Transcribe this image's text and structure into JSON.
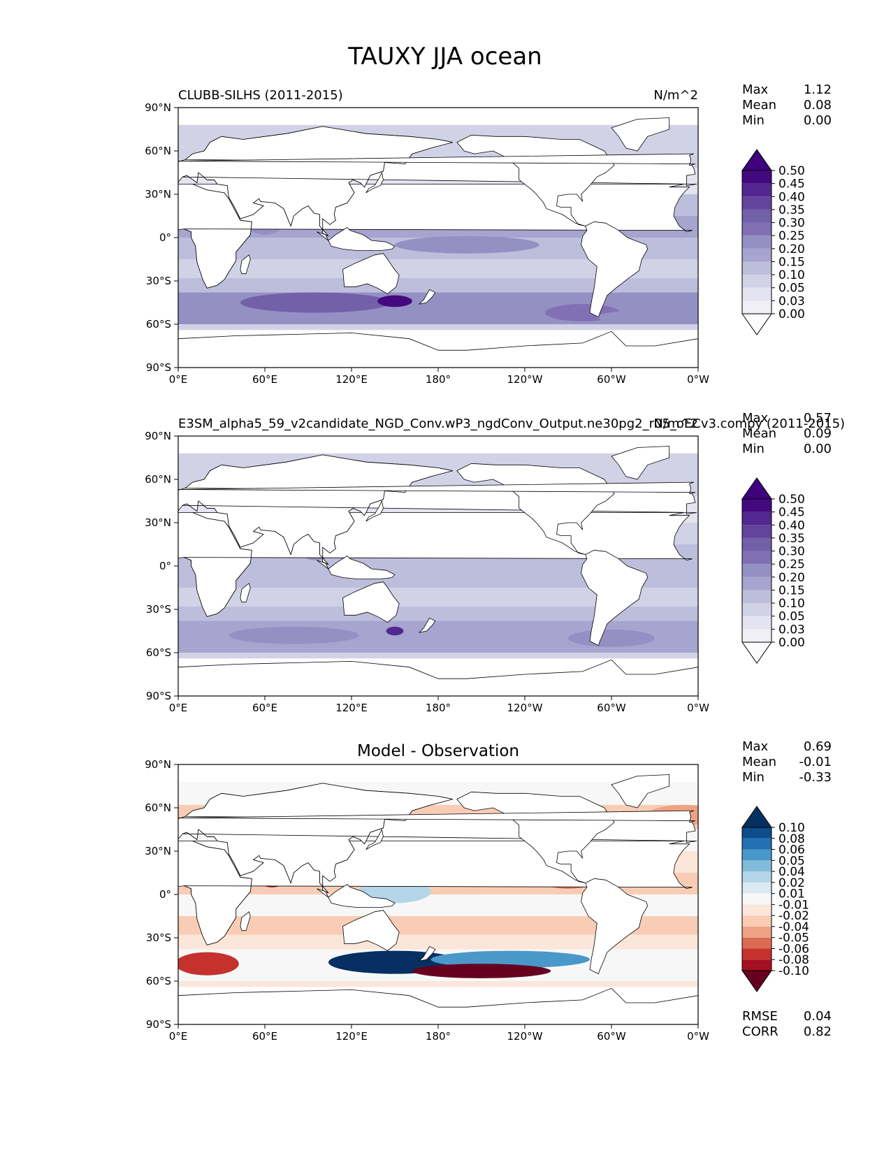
{
  "figure": {
    "title": "TAUXY JJA ocean"
  },
  "chart_data": [
    {
      "type": "heatmap",
      "panel": "test",
      "title_left": "CLUBB-SILHS (2011-2015)",
      "title_center": "",
      "units": "N/m^2",
      "stats": [
        {
          "label": "Max",
          "value": "1.12"
        },
        {
          "label": "Mean",
          "value": "0.08"
        },
        {
          "label": "Min",
          "value": "0.00"
        }
      ],
      "colorbar": {
        "levels": [
          "0.00",
          "0.03",
          "0.05",
          "0.10",
          "0.15",
          "0.20",
          "0.25",
          "0.30",
          "0.35",
          "0.40",
          "0.45",
          "0.50"
        ],
        "colors": [
          "#fcfbfd",
          "#f1eff6",
          "#e4e3f0",
          "#d2d2e7",
          "#bdbedc",
          "#a7a4cf",
          "#9590c4",
          "#8270b5",
          "#7260a9",
          "#62449d",
          "#52278f",
          "#43097e",
          "#3f007d"
        ],
        "extend": "both"
      },
      "xticks": [
        "0°E",
        "60°E",
        "120°E",
        "180°",
        "120°W",
        "60°W",
        "0°W"
      ],
      "yticks": [
        "90°N",
        "60°N",
        "30°N",
        "0°",
        "30°S",
        "60°S",
        "90°S"
      ],
      "xlim": [
        0,
        360
      ],
      "ylim": [
        -90,
        90
      ]
    },
    {
      "type": "heatmap",
      "panel": "reference",
      "title_left": "E3SM_alpha5_59_v2candidate_NGD_Conv.wP3_ngdConv_Output.ne30pg2_r05_oECv3.compy (2011-2015)",
      "title_center": "",
      "units": "N/m^2",
      "stats": [
        {
          "label": "Max",
          "value": "0.57"
        },
        {
          "label": "Mean",
          "value": "0.09"
        },
        {
          "label": "Min",
          "value": "0.00"
        }
      ],
      "colorbar": {
        "levels": [
          "0.00",
          "0.03",
          "0.05",
          "0.10",
          "0.15",
          "0.20",
          "0.25",
          "0.30",
          "0.35",
          "0.40",
          "0.45",
          "0.50"
        ],
        "colors": [
          "#fcfbfd",
          "#f1eff6",
          "#e4e3f0",
          "#d2d2e7",
          "#bdbedc",
          "#a7a4cf",
          "#9590c4",
          "#8270b5",
          "#7260a9",
          "#62449d",
          "#52278f",
          "#43097e",
          "#3f007d"
        ],
        "extend": "both"
      },
      "xticks": [
        "0°E",
        "60°E",
        "120°E",
        "180°",
        "120°W",
        "60°W",
        "0°W"
      ],
      "yticks": [
        "90°N",
        "60°N",
        "30°N",
        "0°",
        "30°S",
        "60°S",
        "90°S"
      ],
      "xlim": [
        0,
        360
      ],
      "ylim": [
        -90,
        90
      ]
    },
    {
      "type": "heatmap",
      "panel": "difference",
      "title_left": "",
      "title_center": "Model - Observation",
      "units": "",
      "stats": [
        {
          "label": "Max",
          "value": "0.69"
        },
        {
          "label": "Mean",
          "value": "-0.01"
        },
        {
          "label": "Min",
          "value": "-0.33"
        }
      ],
      "extra_stats": [
        {
          "label": "RMSE",
          "value": "0.04"
        },
        {
          "label": "CORR",
          "value": "0.82"
        }
      ],
      "colorbar": {
        "levels": [
          "-0.10",
          "-0.08",
          "-0.06",
          "-0.05",
          "-0.04",
          "-0.02",
          "-0.01",
          "0.01",
          "0.02",
          "0.04",
          "0.05",
          "0.06",
          "0.08",
          "0.10"
        ],
        "colors": [
          "#67001f",
          "#a50f22",
          "#c5322e",
          "#db6b55",
          "#f0a285",
          "#f9cdb5",
          "#fbe6da",
          "#f7f7f7",
          "#dbe9f2",
          "#b5d5e8",
          "#83bbdb",
          "#4a98c9",
          "#2270b3",
          "#0c4d8a",
          "#053061"
        ],
        "extend": "both"
      },
      "xticks": [
        "0°E",
        "60°E",
        "120°E",
        "180°",
        "120°W",
        "60°W",
        "0°W"
      ],
      "yticks": [
        "90°N",
        "60°N",
        "30°N",
        "0°",
        "30°S",
        "60°S",
        "90°S"
      ],
      "xlim": [
        0,
        360
      ],
      "ylim": [
        -90,
        90
      ]
    }
  ]
}
